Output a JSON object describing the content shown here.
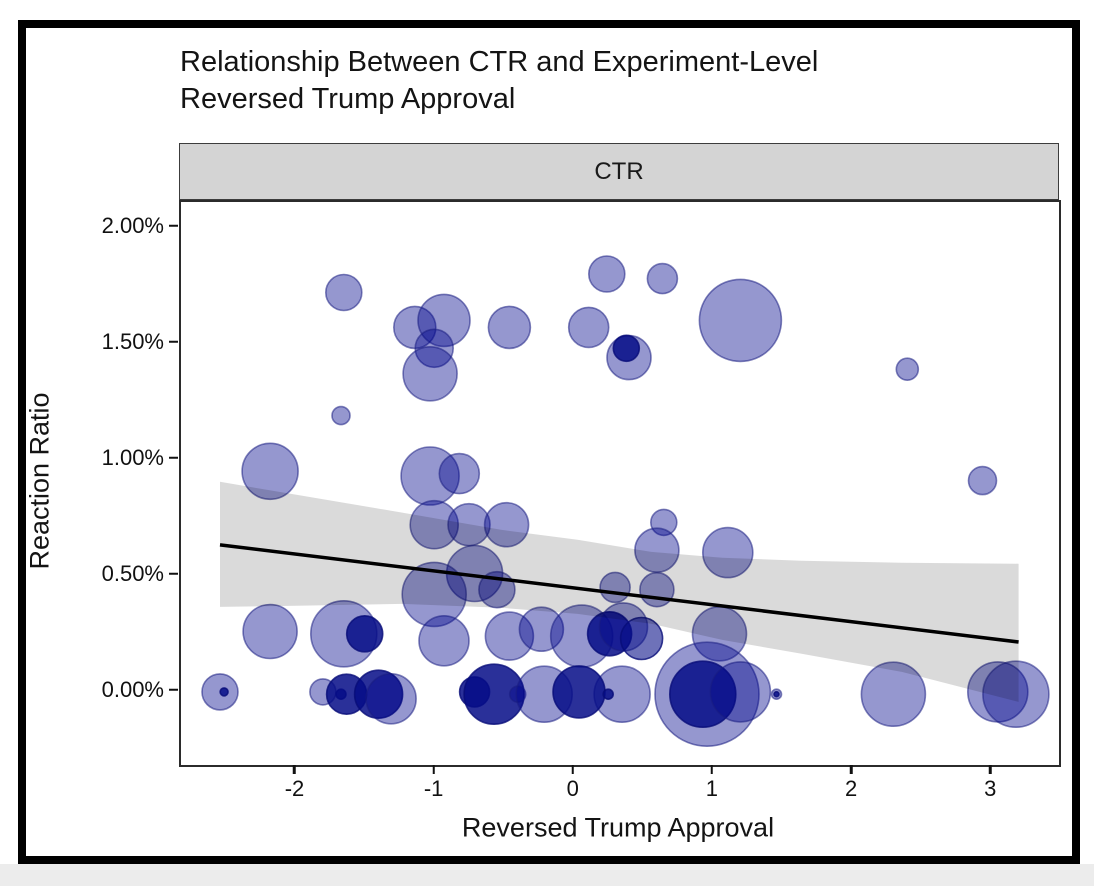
{
  "page": {
    "facet_label": "CTR"
  },
  "chart_data": {
    "type": "scatter",
    "title": "Relationship Between CTR and Experiment-Level Reversed Trump Approval",
    "title_lines": [
      "Relationship Between CTR and Experiment-Level",
      "Reversed Trump Approval"
    ],
    "facet_label": "CTR",
    "xlabel": "Reversed Trump Approval",
    "ylabel": "Reaction Ratio",
    "legend": "none",
    "grid": "off",
    "x_ticks": [
      {
        "label": "-2",
        "value": -2
      },
      {
        "label": "-1",
        "value": -1
      },
      {
        "label": "0",
        "value": 0
      },
      {
        "label": "1",
        "value": 1
      },
      {
        "label": "2",
        "value": 2
      },
      {
        "label": "3",
        "value": 3
      }
    ],
    "y_ticks": [
      {
        "label": "2.00%",
        "value": 2.0
      },
      {
        "label": "1.50%",
        "value": 1.5
      },
      {
        "label": "1.00%",
        "value": 1.0
      },
      {
        "label": "0.50%",
        "value": 0.5
      },
      {
        "label": "0.00%",
        "value": 0.0
      }
    ],
    "xlim": [
      -2.83,
      3.48
    ],
    "ylim_pct": [
      -0.315,
      2.11
    ],
    "colors": {
      "bubble_fill_light": "rgba(2,6,140,0.42)",
      "bubble_fill_mid": "rgba(5,12,135,0.58)",
      "bubble_fill_dark": "rgba(5,12,135,0.85)",
      "bubble_stroke_light": "rgba(25,30,130,0.55)",
      "bubble_stroke_dark": "rgba(8,12,120,0.8)",
      "band_fill": "rgba(0,0,0,0.145)",
      "trend_line": "#000000",
      "strip_bg": "#d4d4d4"
    },
    "trend": {
      "x1": -2.55,
      "y1": 0.633,
      "x2": 3.19,
      "y2": 0.215
    },
    "band": [
      {
        "x": -2.55,
        "hi": 0.905,
        "lo": 0.366
      },
      {
        "x": -2.0,
        "hi": 0.849,
        "lo": 0.371
      },
      {
        "x": -1.24,
        "hi": 0.772,
        "lo": 0.379
      },
      {
        "x": -0.53,
        "hi": 0.698,
        "lo": 0.362
      },
      {
        "x": 0.02,
        "hi": 0.655,
        "lo": 0.336
      },
      {
        "x": 0.55,
        "hi": 0.603,
        "lo": 0.293
      },
      {
        "x": 1.06,
        "hi": 0.578,
        "lo": 0.224
      },
      {
        "x": 1.63,
        "hi": 0.565,
        "lo": 0.164
      },
      {
        "x": 2.35,
        "hi": 0.556,
        "lo": 0.086
      },
      {
        "x": 3.19,
        "hi": 0.552,
        "lo": -0.043
      }
    ],
    "points": [
      {
        "x": -1.66,
        "y": 1.72,
        "r": 18,
        "s": "L"
      },
      {
        "x": -1.15,
        "y": 1.57,
        "r": 21,
        "s": "L"
      },
      {
        "x": -0.94,
        "y": 1.6,
        "r": 26,
        "s": "L"
      },
      {
        "x": -1.01,
        "y": 1.48,
        "r": 19,
        "s": "L"
      },
      {
        "x": -1.04,
        "y": 1.37,
        "r": 27,
        "s": "L"
      },
      {
        "x": -0.47,
        "y": 1.57,
        "r": 21,
        "s": "L"
      },
      {
        "x": 0.1,
        "y": 1.57,
        "r": 20,
        "s": "L"
      },
      {
        "x": 0.23,
        "y": 1.8,
        "r": 18,
        "s": "L"
      },
      {
        "x": 0.63,
        "y": 1.78,
        "r": 15,
        "s": "L"
      },
      {
        "x": 0.39,
        "y": 1.44,
        "r": 22,
        "s": "L"
      },
      {
        "x": 0.37,
        "y": 1.48,
        "r": 13,
        "s": "D"
      },
      {
        "x": 1.19,
        "y": 1.6,
        "r": 41,
        "s": "L"
      },
      {
        "x": 2.39,
        "y": 1.39,
        "r": 11,
        "s": "L"
      },
      {
        "x": -1.68,
        "y": 1.19,
        "r": 9,
        "s": "L"
      },
      {
        "x": 2.93,
        "y": 0.91,
        "r": 14,
        "s": "L"
      },
      {
        "x": -2.19,
        "y": 0.95,
        "r": 28,
        "s": "L"
      },
      {
        "x": -1.04,
        "y": 0.93,
        "r": 29,
        "s": "L"
      },
      {
        "x": -0.83,
        "y": 0.94,
        "r": 20,
        "s": "L"
      },
      {
        "x": -1.01,
        "y": 0.72,
        "r": 24,
        "s": "L"
      },
      {
        "x": -0.76,
        "y": 0.72,
        "r": 21,
        "s": "L"
      },
      {
        "x": -0.49,
        "y": 0.72,
        "r": 22,
        "s": "L"
      },
      {
        "x": 0.64,
        "y": 0.73,
        "r": 13,
        "s": "L"
      },
      {
        "x": 0.59,
        "y": 0.61,
        "r": 22,
        "s": "L"
      },
      {
        "x": 1.1,
        "y": 0.6,
        "r": 25,
        "s": "L"
      },
      {
        "x": -0.72,
        "y": 0.51,
        "r": 28,
        "s": "L"
      },
      {
        "x": -0.56,
        "y": 0.44,
        "r": 18,
        "s": "L"
      },
      {
        "x": -1.01,
        "y": 0.42,
        "r": 32,
        "s": "L"
      },
      {
        "x": 0.29,
        "y": 0.45,
        "r": 15,
        "s": "L"
      },
      {
        "x": 0.59,
        "y": 0.44,
        "r": 17,
        "s": "L"
      },
      {
        "x": -2.19,
        "y": 0.26,
        "r": 27,
        "s": "L"
      },
      {
        "x": -1.66,
        "y": 0.25,
        "r": 33,
        "s": "L"
      },
      {
        "x": -1.51,
        "y": 0.25,
        "r": 18,
        "s": "D"
      },
      {
        "x": -0.94,
        "y": 0.22,
        "r": 25,
        "s": "L"
      },
      {
        "x": -0.47,
        "y": 0.24,
        "r": 24,
        "s": "L"
      },
      {
        "x": -0.24,
        "y": 0.27,
        "r": 22,
        "s": "L"
      },
      {
        "x": 0.05,
        "y": 0.24,
        "r": 31,
        "s": "L"
      },
      {
        "x": 0.25,
        "y": 0.25,
        "r": 22,
        "s": "D"
      },
      {
        "x": 0.35,
        "y": 0.28,
        "r": 24,
        "s": "L"
      },
      {
        "x": 0.48,
        "y": 0.23,
        "r": 21,
        "s": "M"
      },
      {
        "x": 1.04,
        "y": 0.25,
        "r": 27,
        "s": "L"
      },
      {
        "x": 0.34,
        "y": -0.01,
        "r": 28,
        "s": "L"
      },
      {
        "x": -2.55,
        "y": 0.0,
        "r": 18,
        "s": "L"
      },
      {
        "x": -2.52,
        "y": 0.0,
        "r": 4,
        "s": "D"
      },
      {
        "x": -1.81,
        "y": 0.0,
        "r": 13,
        "s": "L"
      },
      {
        "x": -1.68,
        "y": -0.01,
        "r": 5,
        "s": "D"
      },
      {
        "x": -1.64,
        "y": -0.01,
        "r": 20,
        "s": "D"
      },
      {
        "x": -1.41,
        "y": -0.01,
        "r": 24,
        "s": "D"
      },
      {
        "x": -1.32,
        "y": -0.03,
        "r": 25,
        "s": "L"
      },
      {
        "x": -0.72,
        "y": 0.0,
        "r": 15,
        "s": "D"
      },
      {
        "x": -0.58,
        "y": -0.01,
        "r": 30,
        "s": "D"
      },
      {
        "x": -0.41,
        "y": -0.01,
        "r": 8,
        "s": "L"
      },
      {
        "x": -0.22,
        "y": -0.01,
        "r": 28,
        "s": "L"
      },
      {
        "x": 0.03,
        "y": 0.0,
        "r": 26,
        "s": "D"
      },
      {
        "x": 0.24,
        "y": -0.01,
        "r": 5,
        "s": "D"
      },
      {
        "x": 0.95,
        "y": -0.01,
        "r": 52,
        "s": "L"
      },
      {
        "x": 0.92,
        "y": -0.01,
        "r": 33,
        "s": "D"
      },
      {
        "x": 1.19,
        "y": 0.0,
        "r": 30,
        "s": "L"
      },
      {
        "x": 1.45,
        "y": -0.01,
        "r": 5,
        "s": "L"
      },
      {
        "x": 1.45,
        "y": -0.01,
        "r": 2.5,
        "s": "D"
      },
      {
        "x": 2.29,
        "y": -0.01,
        "r": 32,
        "s": "L"
      },
      {
        "x": 3.04,
        "y": 0.0,
        "r": 30,
        "s": "L"
      },
      {
        "x": 3.17,
        "y": -0.01,
        "r": 33,
        "s": "L"
      }
    ]
  }
}
